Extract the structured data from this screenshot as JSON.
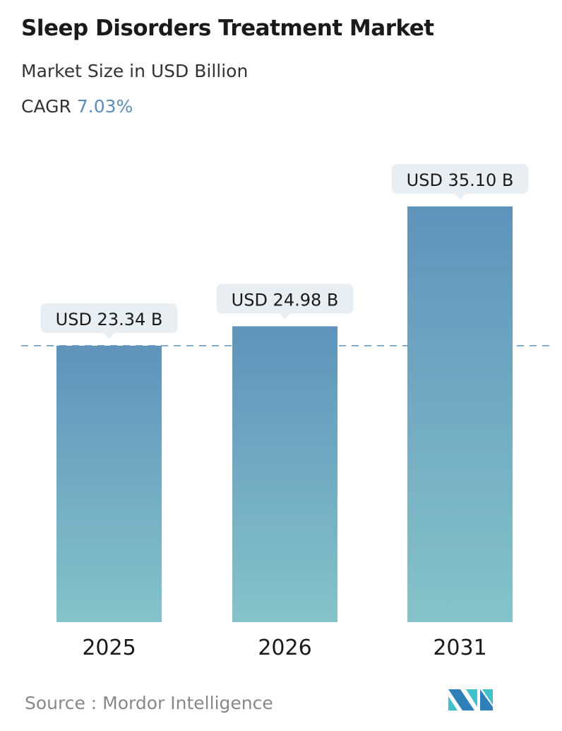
{
  "title": "Sleep Disorders Treatment Market",
  "subtitle": "Market Size in USD Billion",
  "cagr_label": "CAGR",
  "cagr_value": "7.03%",
  "source": "Source :  Mordor Intelligence",
  "logo_text": "Mordor Intelligence",
  "colors": {
    "bar_top": "#5f93bb",
    "bar_bottom": "#86c3c9",
    "cagr": "#5b8db8",
    "label_bg": "#e8eef2"
  },
  "chart_data": {
    "type": "bar",
    "categories": [
      "2025",
      "2026",
      "2031"
    ],
    "values": [
      23.34,
      24.98,
      35.1
    ],
    "data_labels": [
      "USD 23.34 B",
      "USD 24.98 B",
      "USD 35.10 B"
    ],
    "ylim": [
      0,
      35.1
    ],
    "reference_line": 23.34,
    "grid": false
  }
}
